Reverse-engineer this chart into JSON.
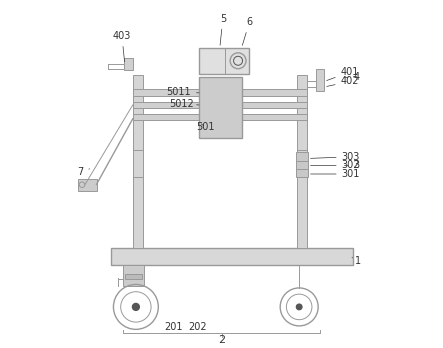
{
  "bg_color": "#ffffff",
  "line_color": "#999999",
  "dark_line": "#555555",
  "label_color": "#333333",
  "label_fontsize": 7,
  "fig_width": 4.43,
  "fig_height": 3.48
}
